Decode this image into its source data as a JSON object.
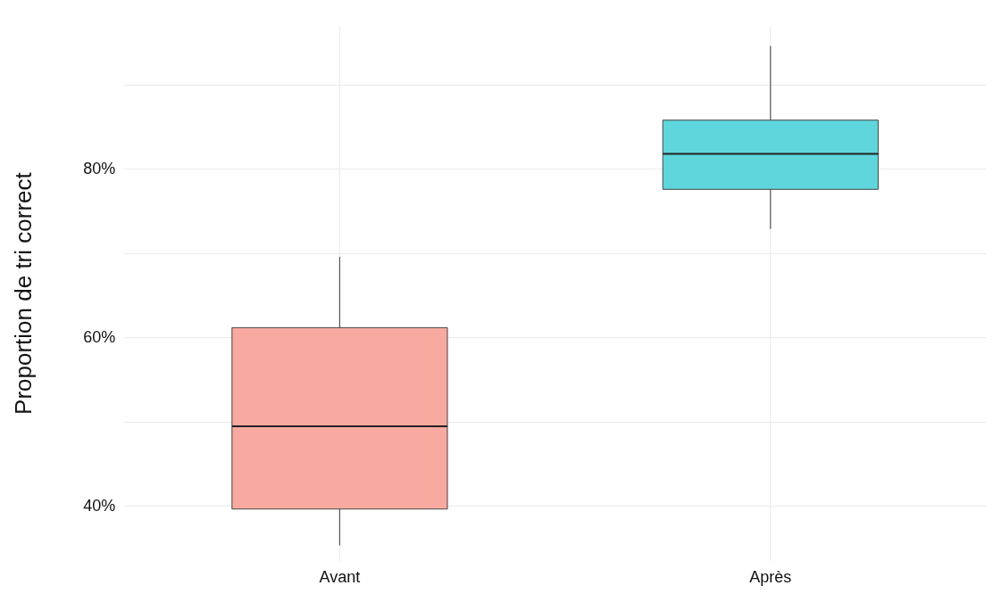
{
  "chart_data": {
    "type": "box",
    "ylabel": "Proportion de tri correct",
    "categories": [
      "Avant",
      "Après"
    ],
    "boxes": [
      {
        "low": 35.4,
        "q1": 39.7,
        "median": 49.5,
        "q3": 61.2,
        "high": 69.6
      },
      {
        "low": 72.9,
        "q1": 77.6,
        "median": 81.8,
        "q3": 85.8,
        "high": 94.6
      }
    ],
    "colors": [
      "#f8a9a0",
      "#5fd6dc"
    ],
    "ylim": [
      33.5,
      97
    ],
    "yticks": [
      {
        "value": 40,
        "label": "40%"
      },
      {
        "value": 50,
        "label": null
      },
      {
        "value": 60,
        "label": "60%"
      },
      {
        "value": 70,
        "label": null
      },
      {
        "value": 80,
        "label": "80%"
      },
      {
        "value": 90,
        "label": null
      }
    ],
    "grid": true,
    "legend": false
  }
}
